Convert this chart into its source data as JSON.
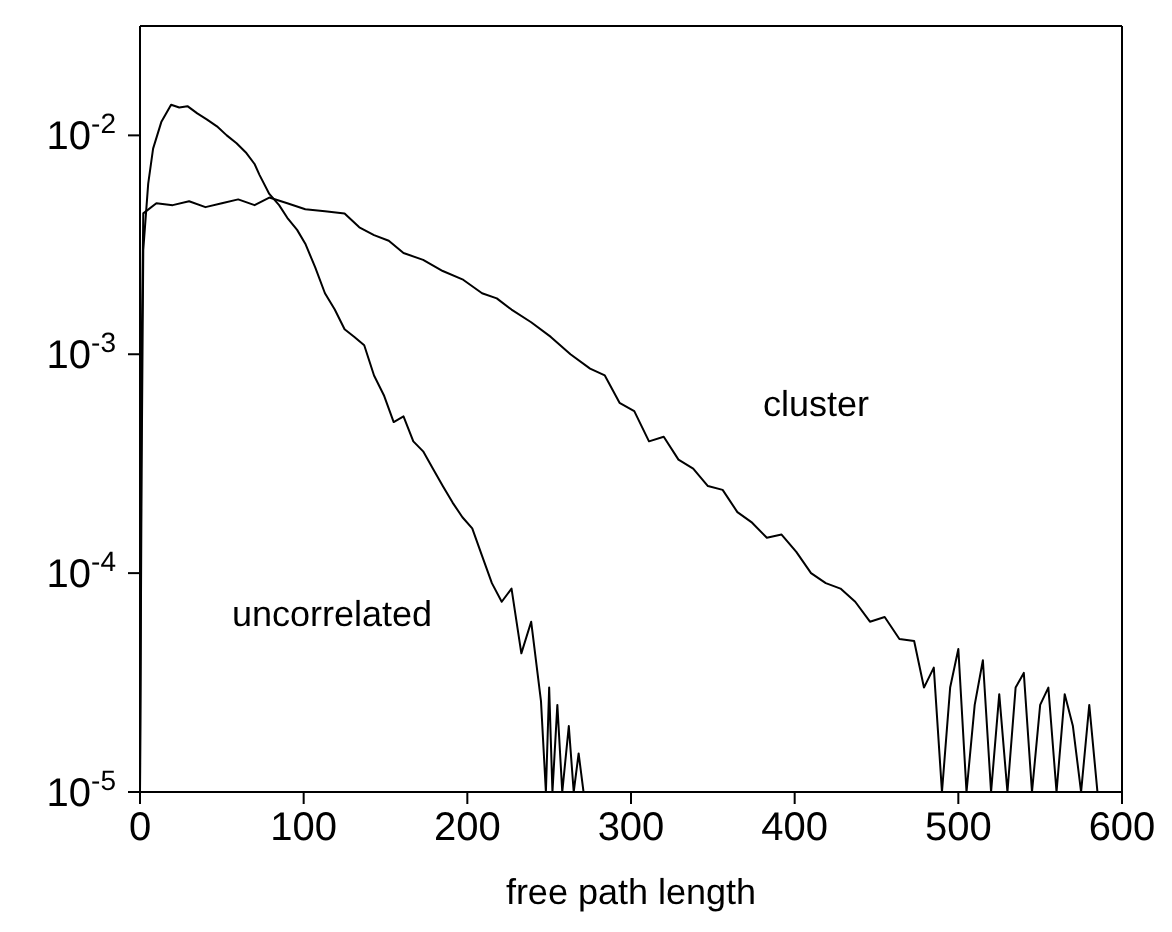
{
  "chart_data": {
    "type": "line",
    "xlabel": "free path length",
    "log": "y",
    "marker": "none",
    "line_style": "solid",
    "xlim": [
      0,
      600
    ],
    "xticks": [
      0,
      100,
      200,
      300,
      400,
      500,
      600
    ],
    "ylim": [
      1e-05,
      0.0316
    ],
    "yticks": [
      {
        "value": 1e-05,
        "label": "10$^{-5}$"
      },
      {
        "value": 0.0001,
        "label": "10$^{-4}$"
      },
      {
        "value": 0.001,
        "label": "10$^{-3}$"
      },
      {
        "value": 0.01,
        "label": "10$^{-2}$"
      }
    ],
    "series": [
      {
        "color": "#000000",
        "x": [
          0,
          1,
          2,
          5,
          8,
          13,
          19,
          24,
          29,
          35,
          41,
          47,
          53,
          59,
          65,
          70,
          73,
          79,
          85,
          90,
          96,
          101,
          107,
          113,
          119,
          125,
          131,
          137,
          143,
          149,
          155,
          161,
          167,
          173,
          179,
          185,
          191,
          197,
          203,
          209,
          215,
          221,
          227,
          233,
          239,
          245,
          248,
          250,
          252,
          255,
          258,
          262,
          265,
          268,
          271,
          274
        ],
        "values": [
          1e-05,
          0.0003,
          0.003,
          0.006,
          0.0087,
          0.0115,
          0.0138,
          0.0134,
          0.0136,
          0.0126,
          0.0118,
          0.011,
          0.01,
          0.0092,
          0.0083,
          0.0074,
          0.0066,
          0.0054,
          0.0048,
          0.0042,
          0.0037,
          0.0032,
          0.0025,
          0.0019,
          0.0016,
          0.0013,
          0.0012,
          0.0011,
          0.0008,
          0.00065,
          0.00049,
          0.00052,
          0.0004,
          0.00036,
          0.0003,
          0.00025,
          0.00021,
          0.00018,
          0.00016,
          0.00012,
          9e-05,
          7.4e-05,
          8.5e-05,
          4.3e-05,
          6e-05,
          2.6e-05,
          1e-05,
          3e-05,
          1e-05,
          2.5e-05,
          1e-05,
          2e-05,
          1e-05,
          1.5e-05,
          1e-05,
          1e-05
        ]
      },
      {
        "color": "#000000",
        "x": [
          0,
          1,
          2,
          10,
          20,
          30,
          40,
          50,
          60,
          70,
          79,
          90,
          101,
          113,
          125,
          134,
          143,
          152,
          161,
          173,
          185,
          197,
          209,
          218,
          227,
          239,
          251,
          263,
          275,
          284,
          293,
          302,
          311,
          320,
          329,
          338,
          347,
          356,
          365,
          374,
          383,
          392,
          401,
          410,
          419,
          428,
          437,
          446,
          455,
          464,
          473,
          479,
          485,
          490,
          495,
          500,
          505,
          510,
          515,
          520,
          525,
          530,
          535,
          540,
          545,
          550,
          555,
          560,
          565,
          570,
          575,
          580,
          585
        ],
        "values": [
          1e-05,
          0.001,
          0.0044,
          0.0049,
          0.0048,
          0.005,
          0.0047,
          0.0049,
          0.0051,
          0.0048,
          0.0052,
          0.0049,
          0.0046,
          0.0045,
          0.0044,
          0.0038,
          0.0035,
          0.0033,
          0.0029,
          0.0027,
          0.0024,
          0.0022,
          0.0019,
          0.0018,
          0.0016,
          0.0014,
          0.0012,
          0.001,
          0.00086,
          0.0008,
          0.0006,
          0.00055,
          0.0004,
          0.00042,
          0.00033,
          0.0003,
          0.00025,
          0.00024,
          0.00019,
          0.00017,
          0.000145,
          0.00015,
          0.000125,
          0.0001,
          9e-05,
          8.5e-05,
          7.4e-05,
          6e-05,
          6.3e-05,
          5e-05,
          4.9e-05,
          3e-05,
          3.7e-05,
          1e-05,
          3e-05,
          4.5e-05,
          1e-05,
          2.5e-05,
          4e-05,
          1e-05,
          2.8e-05,
          1e-05,
          3e-05,
          3.5e-05,
          1e-05,
          2.5e-05,
          3e-05,
          1e-05,
          2.8e-05,
          2e-05,
          1e-05,
          2.5e-05,
          1e-05
        ]
      }
    ],
    "annotations": [
      "cluster",
      "uncorrelated"
    ]
  }
}
